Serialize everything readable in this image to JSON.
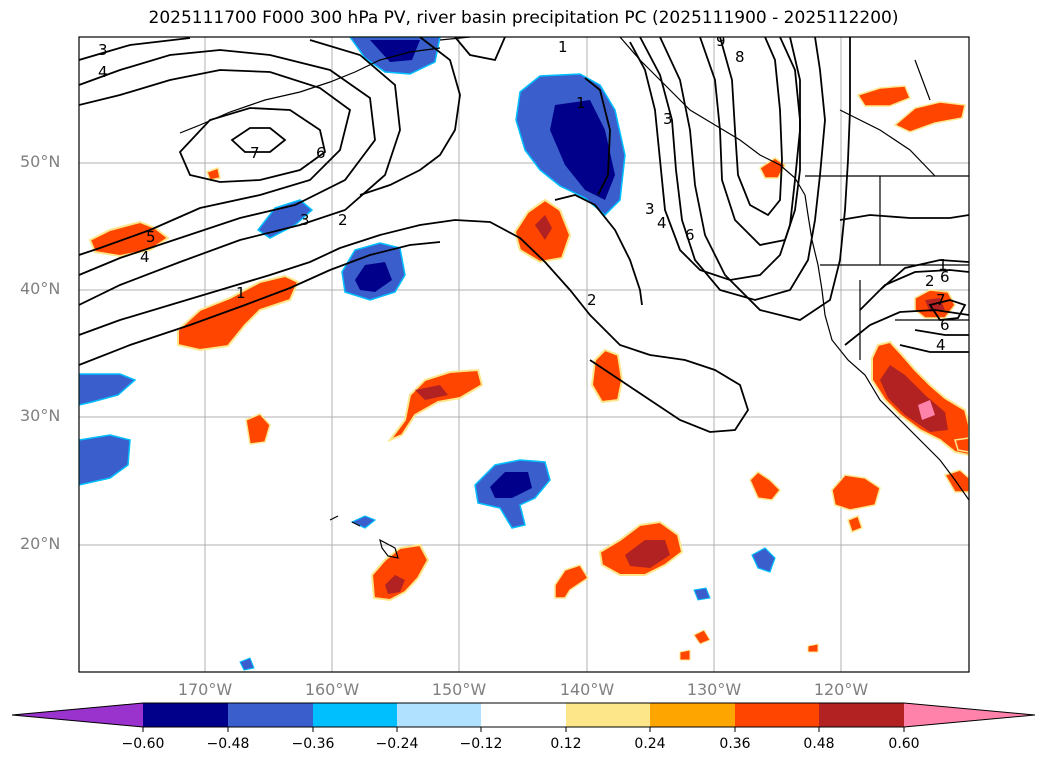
{
  "title": "2025111700 F000 300 hPa PV, river basin precipitation PC (2025111900 - 2025112200)",
  "lat_labels": [
    "50°N",
    "40°N",
    "30°N",
    "20°N"
  ],
  "lon_labels": [
    "170°W",
    "160°W",
    "150°W",
    "140°W",
    "130°W",
    "120°W"
  ],
  "colorbar": {
    "ticks": [
      "−0.60",
      "−0.48",
      "−0.36",
      "−0.24",
      "−0.12",
      "0.12",
      "0.24",
      "0.36",
      "0.48",
      "0.60"
    ],
    "colors": [
      "#9a32cd",
      "#00008b",
      "#3a5fcd",
      "#00bfff",
      "#b0e2ff",
      "#ffffff",
      "#fde68a",
      "#ffa500",
      "#ff4500",
      "#b22222",
      "#ff82ab"
    ]
  },
  "contour_labels": [
    "3",
    "4",
    "7",
    "6",
    "5",
    "4",
    "3",
    "2",
    "1",
    "1",
    "2",
    "3",
    "4",
    "6",
    "8",
    "9",
    "1",
    "3",
    "6",
    "4",
    "1",
    "2",
    "6",
    "7"
  ],
  "colors": {
    "neg_dark": "#00008b",
    "neg_mid": "#3a5fcd",
    "neg_light": "#00bfff",
    "pos_yellow": "#fde68a",
    "pos_orange": "#ff4500",
    "pos_dark": "#b22222",
    "pos_pink": "#ff82ab",
    "grid": "#b0b0b0"
  }
}
